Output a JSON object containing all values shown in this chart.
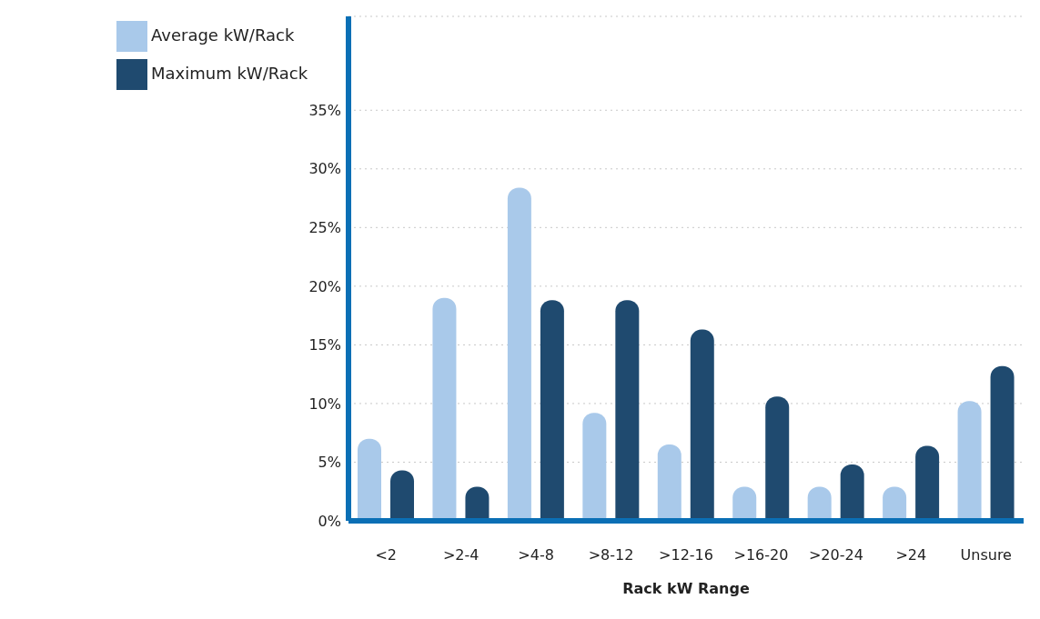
{
  "chart_data": {
    "type": "bar",
    "xlabel": "Rack kW Range",
    "categories": [
      "<2",
      ">2-4",
      ">4-8",
      ">8-12",
      ">12-16",
      ">16-20",
      ">20-24",
      ">24",
      "Unsure"
    ],
    "series": [
      {
        "name": "Average kW/Rack",
        "color": "#a9c9ea",
        "values": [
          7.0,
          19.0,
          28.4,
          9.2,
          6.5,
          2.9,
          2.9,
          2.9,
          10.2
        ]
      },
      {
        "name": "Maximum kW/Rack",
        "color": "#1f4a6f",
        "values": [
          4.3,
          2.9,
          18.8,
          18.8,
          16.3,
          10.6,
          4.8,
          6.4,
          13.2
        ]
      }
    ],
    "ylim": [
      0,
      43
    ],
    "yticks": [
      {
        "value": 0,
        "label": "0%"
      },
      {
        "value": 5,
        "label": "5%"
      },
      {
        "value": 10,
        "label": "10%"
      },
      {
        "value": 15,
        "label": "15%"
      },
      {
        "value": 20,
        "label": "20%"
      },
      {
        "value": 25,
        "label": "25%"
      },
      {
        "value": 30,
        "label": "30%"
      },
      {
        "value": 35,
        "label": "35%"
      }
    ],
    "grid": "y",
    "legend": "top left"
  }
}
